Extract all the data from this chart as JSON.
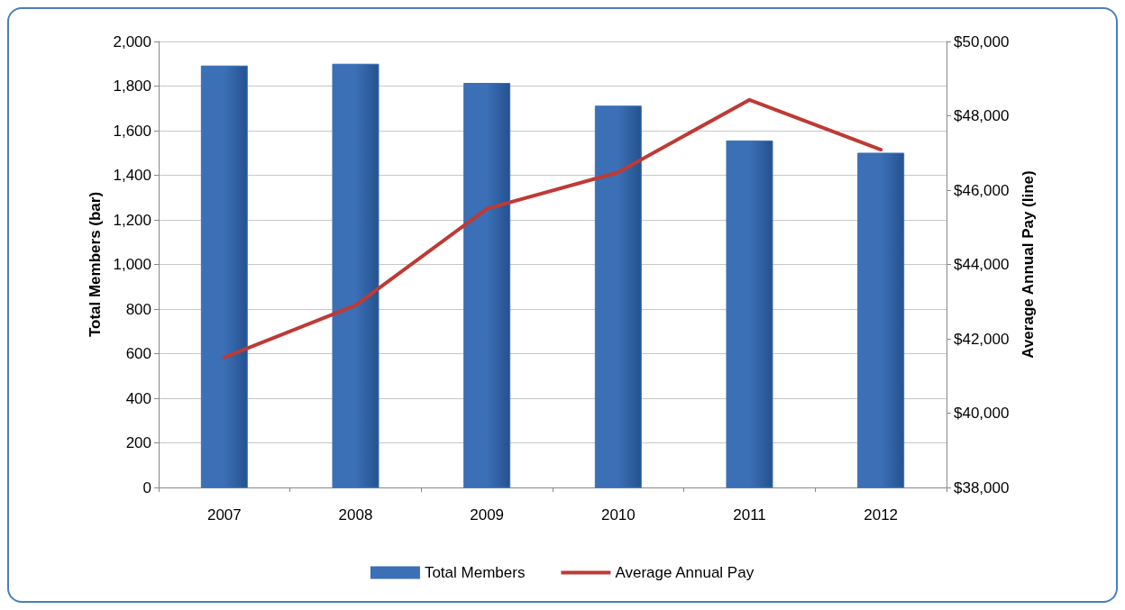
{
  "chart_data": {
    "type": "bar",
    "categories": [
      "2007",
      "2008",
      "2009",
      "2010",
      "2011",
      "2012"
    ],
    "ylabel": "Total Members (bar)",
    "y2label": "Average Annual Pay (line)",
    "series": [
      {
        "name": "Total Members",
        "color": "#3b6fb6",
        "values": [
          1890,
          1898,
          1812,
          1710,
          1554,
          1499
        ]
      },
      {
        "name": "Average Annual Pay",
        "type": "line",
        "axis": "y2",
        "color": "#be3a35",
        "values": [
          41500,
          42900,
          45500,
          46480,
          48430,
          47090
        ]
      }
    ],
    "ylim": [
      0,
      2000
    ],
    "yticks": [
      0,
      200,
      400,
      600,
      800,
      {
        "value": 1000,
        "label": "1,000"
      },
      {
        "value": 1200,
        "label": "1,200"
      },
      {
        "value": 1400,
        "label": "1,400"
      },
      {
        "value": 1600,
        "label": "1,600"
      },
      {
        "value": 1800,
        "label": "1,800"
      },
      {
        "value": 2000,
        "label": "2,000"
      }
    ],
    "y2lim": [
      38000,
      50000
    ],
    "y2ticks": [
      {
        "value": 38000,
        "label": "$38,000"
      },
      {
        "value": 40000,
        "label": "$40,000"
      },
      {
        "value": 42000,
        "label": "$42,000"
      },
      {
        "value": 44000,
        "label": "$44,000"
      },
      {
        "value": 46000,
        "label": "$46,000"
      },
      {
        "value": 48000,
        "label": "$48,000"
      },
      {
        "value": 50000,
        "label": "$50,000"
      }
    ],
    "grid": "y",
    "legend": "bottom",
    "marker": "none",
    "line_style": "solid"
  }
}
